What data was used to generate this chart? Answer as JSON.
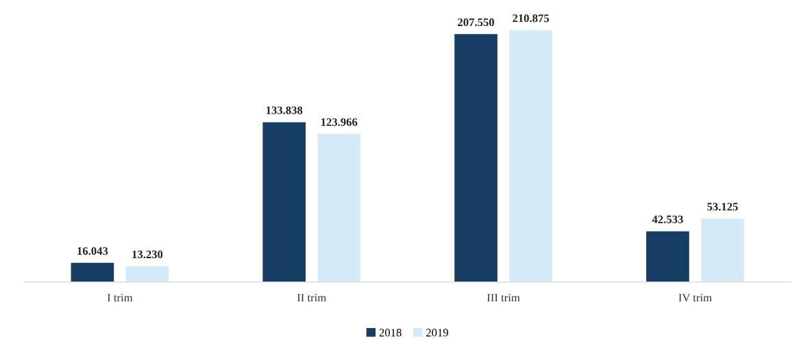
{
  "chart_data": {
    "type": "bar",
    "categories": [
      "I trim",
      "II trim",
      "III trim",
      "IV trim"
    ],
    "series": [
      {
        "name": "2018",
        "color": "#173d63",
        "values": [
          16043,
          133838,
          207550,
          42533
        ],
        "value_labels": [
          "16.043",
          "133.838",
          "207.550",
          "42.533"
        ]
      },
      {
        "name": "2019",
        "color": "#d5ebf7",
        "values": [
          13230,
          123966,
          210875,
          53125
        ],
        "value_labels": [
          "13.230",
          "123.966",
          "210.875",
          "53.125"
        ]
      }
    ],
    "legend": "bottom",
    "tick_labels": "x"
  }
}
